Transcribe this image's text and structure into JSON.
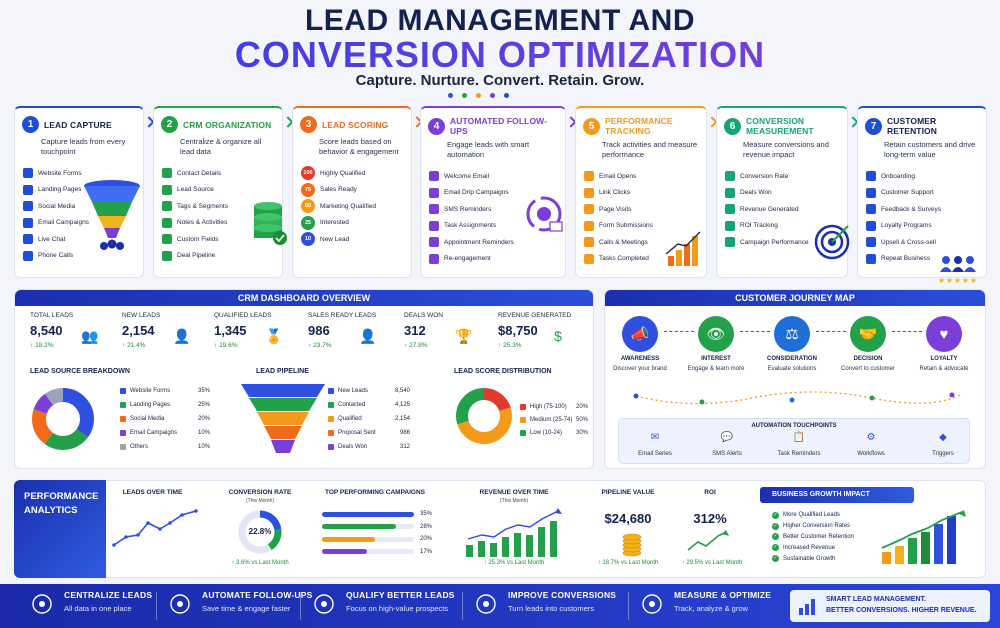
{
  "header": {
    "title_line1": "LEAD MANAGEMENT AND",
    "title_line2": "CONVERSION OPTIMIZATION",
    "tagline": "Capture. Nurture. Convert. Retain. Grow."
  },
  "steps": [
    {
      "num": "1",
      "title": "LEAD CAPTURE",
      "desc": "Capture leads from every touchpoint",
      "color": "#1f4fd8",
      "items": [
        "Website Forms",
        "Landing Pages",
        "Social Media",
        "Email Campaigns",
        "Live Chat",
        "Phone Calls"
      ]
    },
    {
      "num": "2",
      "title": "CRM ORGANIZATION",
      "desc": "Centralize & organize all lead data",
      "color": "#23a04a",
      "items": [
        "Contact Details",
        "Lead Source",
        "Tags & Segments",
        "Notes & Activities",
        "Custom Fields",
        "Deal Pipeline"
      ]
    },
    {
      "num": "3",
      "title": "LEAD SCORING",
      "desc": "Score leads based on behavior & engagement",
      "color": "#f26a1b",
      "items": [
        "Highly Qualified",
        "Sales Ready",
        "Marketing Qualified",
        "Interested",
        "New Lead"
      ],
      "scores": [
        "100",
        "75",
        "50",
        "25",
        "10"
      ]
    },
    {
      "num": "4",
      "title": "AUTOMATED FOLLOW-UPS",
      "desc": "Engage leads with smart automation",
      "color": "#7b3fd8",
      "items": [
        "Welcome Email",
        "Email Drip Campaigns",
        "SMS Reminders",
        "Task Assignments",
        "Appointment Reminders",
        "Re-engagement"
      ]
    },
    {
      "num": "5",
      "title": "PERFORMANCE TRACKING",
      "desc": "Track activities and measure performance",
      "color": "#f39a1b",
      "items": [
        "Email Opens",
        "Link Clicks",
        "Page Visits",
        "Form Submissions",
        "Calls & Meetings",
        "Tasks Completed"
      ]
    },
    {
      "num": "6",
      "title": "CONVERSION MEASUREMENT",
      "desc": "Measure conversions and revenue impact",
      "color": "#16a37a",
      "items": [
        "Conversion Rate",
        "Deals Won",
        "Revenue Generated",
        "ROI Tracking",
        "Campaign Performance"
      ]
    },
    {
      "num": "7",
      "title": "CUSTOMER RETENTION",
      "desc": "Retain customers and drive long-term value",
      "color": "#1f4fd8",
      "items": [
        "Onboarding",
        "Customer Support",
        "Feedback & Surveys",
        "Loyalty Programs",
        "Upsell & Cross-sell",
        "Repeat Business"
      ]
    }
  ],
  "dashboard": {
    "title": "CRM DASHBOARD OVERVIEW",
    "kpis": [
      {
        "label": "TOTAL LEADS",
        "value": "8,540",
        "change": "18.2%"
      },
      {
        "label": "NEW LEADS",
        "value": "2,154",
        "change": "21.4%"
      },
      {
        "label": "QUALIFIED LEADS",
        "value": "1,345",
        "change": "19.6%"
      },
      {
        "label": "SALES READY LEADS",
        "value": "986",
        "change": "23.7%"
      },
      {
        "label": "DEALS WON",
        "value": "312",
        "change": "27.8%"
      },
      {
        "label": "REVENUE GENERATED",
        "value": "$8,750",
        "change": "25.3%"
      }
    ],
    "lead_source": {
      "title": "LEAD SOURCE BREAKDOWN",
      "rows": [
        {
          "name": "Website Forms",
          "value": "35%",
          "pct": 35,
          "color": "#2f4fe0"
        },
        {
          "name": "Landing Pages",
          "value": "25%",
          "pct": 25,
          "color": "#23a04a"
        },
        {
          "name": "Social Media",
          "value": "20%",
          "pct": 20,
          "color": "#f26a1b"
        },
        {
          "name": "Email Campaigns",
          "value": "10%",
          "pct": 10,
          "color": "#7b3fd8"
        },
        {
          "name": "Others",
          "value": "10%",
          "pct": 10,
          "color": "#9aa3b8"
        }
      ]
    },
    "pipeline": {
      "title": "LEAD PIPELINE",
      "rows": [
        {
          "name": "New Leads",
          "value": "8,540",
          "color": "#2f4fe0"
        },
        {
          "name": "Contacted",
          "value": "4,125",
          "color": "#23a04a"
        },
        {
          "name": "Qualified",
          "value": "2,154",
          "color": "#f39a1b"
        },
        {
          "name": "Proposal Sent",
          "value": "986",
          "color": "#f26a1b"
        },
        {
          "name": "Deals Won",
          "value": "312",
          "color": "#7b3fd8"
        }
      ]
    },
    "score_dist": {
      "title": "LEAD SCORE DISTRIBUTION",
      "rows": [
        {
          "name": "High (75-100)",
          "value": "20%",
          "pct": 20,
          "color": "#e23b2e"
        },
        {
          "name": "Medium (25-74)",
          "value": "50%",
          "pct": 50,
          "color": "#f39a1b"
        },
        {
          "name": "Low (10-24)",
          "value": "30%",
          "pct": 30,
          "color": "#23a04a"
        }
      ]
    }
  },
  "journey": {
    "title": "CUSTOMER JOURNEY MAP",
    "stages": [
      {
        "name": "AWARENESS",
        "desc": "Discover your brand",
        "color": "#2f4fe0"
      },
      {
        "name": "INTEREST",
        "desc": "Engage & learn more",
        "color": "#23a04a"
      },
      {
        "name": "CONSIDERATION",
        "desc": "Evaluate solutions",
        "color": "#1f6fd8"
      },
      {
        "name": "DECISION",
        "desc": "Convert to customer",
        "color": "#23a04a"
      },
      {
        "name": "LOYALTY",
        "desc": "Retain & advocate",
        "color": "#7b3fd8"
      }
    ],
    "touchpoints_title": "AUTOMATION TOUCHPOINTS",
    "touchpoints": [
      "Email Series",
      "SMS Alerts",
      "Task Reminders",
      "Workflows",
      "Triggers"
    ]
  },
  "analytics": {
    "title_line1": "PERFORMANCE",
    "title_line2": "ANALYTICS",
    "leads_over_time": {
      "title": "LEADS OVER TIME"
    },
    "conversion_rate": {
      "title": "CONVERSION RATE",
      "sub": "(This Month)",
      "value": "22.8%",
      "pct": 22.8,
      "change": "3.6% vs Last Month"
    },
    "campaigns": {
      "title": "TOP PERFORMING CAMPAIGNS",
      "rows": [
        {
          "value": "35%",
          "pct": 35,
          "color": "#2f4fe0"
        },
        {
          "value": "28%",
          "pct": 28,
          "color": "#23a04a"
        },
        {
          "value": "20%",
          "pct": 20,
          "color": "#f39a1b"
        },
        {
          "value": "17%",
          "pct": 17,
          "color": "#7b3fd8"
        }
      ]
    },
    "revenue": {
      "title": "REVENUE OVER TIME",
      "sub": "(This Month)",
      "change": "25.3% vs Last Month"
    },
    "pipeline_value": {
      "title": "PIPELINE VALUE",
      "value": "$24,680",
      "change": "18.7% vs Last Month"
    },
    "roi": {
      "title": "ROI",
      "value": "312%",
      "change": "29.5% vs Last Month"
    },
    "growth": {
      "title": "BUSINESS GROWTH IMPACT",
      "items": [
        "More Qualified Leads",
        "Higher Conversion Rates",
        "Better Customer Retention",
        "Increased Revenue",
        "Sustainable Growth"
      ]
    }
  },
  "footer": [
    {
      "title": "CENTRALIZE LEADS",
      "sub": "All data in one place",
      "icon": "database-icon"
    },
    {
      "title": "AUTOMATE FOLLOW-UPS",
      "sub": "Save time & engage faster",
      "icon": "automation-icon"
    },
    {
      "title": "QUALIFY BETTER LEADS",
      "sub": "Focus on high-value prospects",
      "icon": "filter-icon"
    },
    {
      "title": "IMPROVE CONVERSIONS",
      "sub": "Turn leads into customers",
      "icon": "shield-check-icon"
    },
    {
      "title": "MEASURE & OPTIMIZE",
      "sub": "Track, analyze & grow",
      "icon": "gauge-icon"
    }
  ],
  "footer_banner": {
    "line1": "SMART LEAD MANAGEMENT.",
    "line2": "BETTER CONVERSIONS. HIGHER REVENUE."
  }
}
